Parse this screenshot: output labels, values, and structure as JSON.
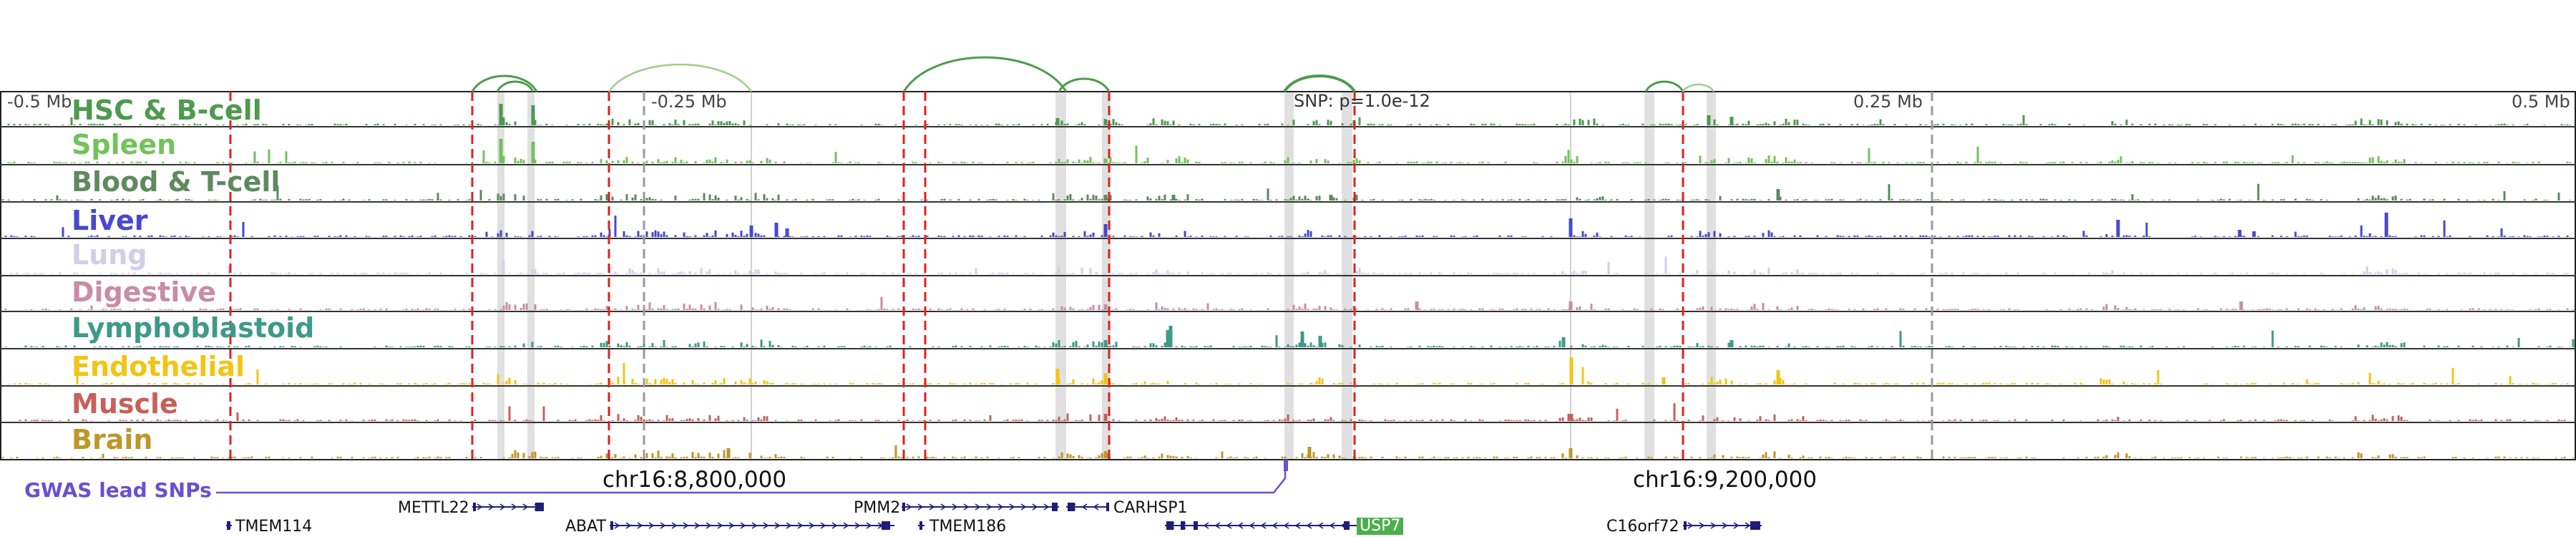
{
  "axis": {
    "ticks": [
      "-0.5 Mb",
      "-0.25 Mb",
      "0.25 Mb",
      "0.5 Mb"
    ],
    "snp_label": "SNP: p=1.0e-12"
  },
  "coordinates": [
    "chr16:8,800,000",
    "chr16:9,200,000"
  ],
  "gwas_label": "GWAS lead SNPs",
  "tracks": [
    {
      "label": "HSC & B-cell",
      "color": "#4e9a4e"
    },
    {
      "label": "Spleen",
      "color": "#72c35a"
    },
    {
      "label": "Blood & T-cell",
      "color": "#5e8a5e"
    },
    {
      "label": "Liver",
      "color": "#4848d0"
    },
    {
      "label": "Lung",
      "color": "#d2cde8"
    },
    {
      "label": "Digestive",
      "color": "#c88ca6"
    },
    {
      "label": "Lymphoblastoid",
      "color": "#3e9a88"
    },
    {
      "label": "Endothelial",
      "color": "#f2c414"
    },
    {
      "label": "Muscle",
      "color": "#c8605a"
    },
    {
      "label": "Brain",
      "color": "#be962a"
    }
  ],
  "genes": [
    {
      "name": "METTL22",
      "strand": "+",
      "highlight": false
    },
    {
      "name": "PMM2",
      "strand": "+",
      "highlight": false
    },
    {
      "name": "CARHSP1",
      "strand": "-",
      "highlight": false
    },
    {
      "name": "TMEM114",
      "strand": "+",
      "highlight": false
    },
    {
      "name": "ABAT",
      "strand": "+",
      "highlight": false
    },
    {
      "name": "TMEM186",
      "strand": "-",
      "highlight": false
    },
    {
      "name": "USP7",
      "strand": "-",
      "highlight": true
    },
    {
      "name": "C16orf72",
      "strand": "+",
      "highlight": false
    }
  ],
  "colors": {
    "loop": "#4e9a4e",
    "loop_light": "#9bcf8e",
    "ld_line": "#e02020",
    "gwas": "#6a4fd0",
    "gene": "#1e1e78",
    "highlight_gene": "#4cae4c"
  }
}
